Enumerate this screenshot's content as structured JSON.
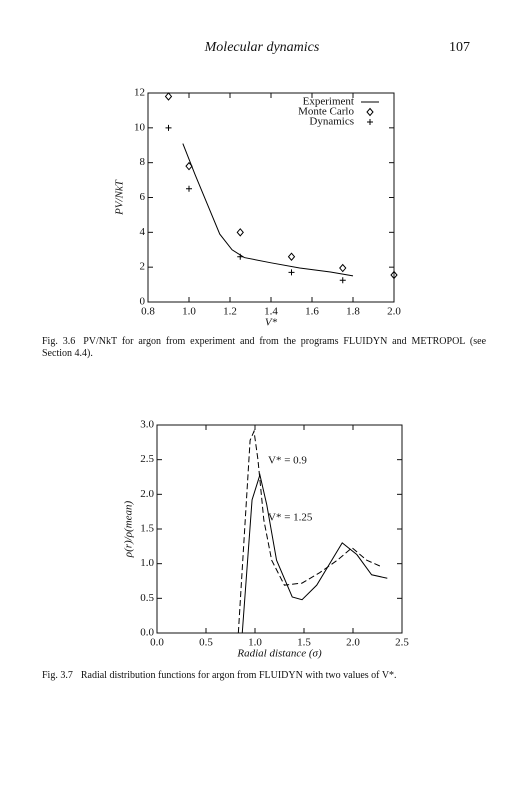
{
  "page_header": {
    "title": "Molecular dynamics",
    "page_number": "107"
  },
  "chart_data": [
    {
      "type": "scatter",
      "xlabel": "V*",
      "ylabel": "PV/NkT",
      "xlim": [
        0.8,
        2.0
      ],
      "xticks": [
        0.8,
        {
          "value": 1.0,
          "label": "1.0"
        },
        1.2,
        1.4,
        1.6,
        1.8,
        {
          "value": 2.0,
          "label": "2.0"
        }
      ],
      "ylim": [
        0,
        12
      ],
      "yticks": [
        0,
        2,
        4,
        6,
        8,
        10,
        12
      ],
      "grid": false,
      "legend": "upper right",
      "series": [
        {
          "name": "Experiment",
          "marker": "line",
          "color": "#000000",
          "x": [
            0.97,
            1.03,
            1.09,
            1.15,
            1.21,
            1.27,
            1.4,
            1.54,
            1.69,
            1.8
          ],
          "values": [
            9.1,
            7.3,
            5.6,
            3.9,
            3.0,
            2.55,
            2.25,
            1.95,
            1.72,
            1.5
          ]
        },
        {
          "name": "Monte Carlo",
          "marker": "diamond",
          "color": "#000000",
          "x": [
            0.9,
            1.0,
            1.25,
            1.5,
            1.75,
            2.0
          ],
          "values": [
            11.8,
            7.8,
            4.0,
            2.6,
            1.95,
            1.55
          ]
        },
        {
          "name": "Dynamics",
          "marker": "plus",
          "color": "#000000",
          "x": [
            0.9,
            1.0,
            1.25,
            1.5,
            1.75
          ],
          "values": [
            10.0,
            6.5,
            2.6,
            1.7,
            1.25
          ]
        }
      ],
      "caption": {
        "label": "Fig. 3.6",
        "text": "PV/NkT for argon from experiment and from the programs FLUIDYN and METROPOL (see Section 4.4)."
      }
    },
    {
      "type": "line",
      "xlabel": "Radial distance (σ)",
      "ylabel": "ρ(r)/ρ(mean)",
      "xlim": [
        0,
        2.5
      ],
      "xticks": [
        {
          "value": 0,
          "label": "0.0"
        },
        0.5,
        {
          "value": 1,
          "label": "1.0"
        },
        1.5,
        {
          "value": 2,
          "label": "2.0"
        },
        2.5
      ],
      "ylim": [
        0,
        3
      ],
      "yticks": [
        {
          "value": 0,
          "label": "0.0"
        },
        0.5,
        {
          "value": 1,
          "label": "1.0"
        },
        1.5,
        {
          "value": 2,
          "label": "2.0"
        },
        2.5,
        {
          "value": 3,
          "label": "3.0"
        }
      ],
      "grid": false,
      "series": [
        {
          "name": "V* = 0.9",
          "marker": "line",
          "dash": true,
          "color": "#000000",
          "x": [
            0.83,
            0.95,
            0.99,
            1.03,
            1.09,
            1.17,
            1.3,
            1.48,
            1.66,
            1.84,
            1.99,
            2.14,
            2.3
          ],
          "values": [
            0,
            2.78,
            2.91,
            2.5,
            1.63,
            1.05,
            0.69,
            0.72,
            0.87,
            1.05,
            1.23,
            1.05,
            0.95
          ]
        },
        {
          "name": "V* = 1.25",
          "marker": "line",
          "dash": false,
          "color": "#000000",
          "x": [
            0.87,
            0.97,
            1.05,
            1.12,
            1.22,
            1.38,
            1.48,
            1.63,
            1.89,
            2.04,
            2.19,
            2.35
          ],
          "values": [
            0,
            1.92,
            2.28,
            1.85,
            1.05,
            0.52,
            0.48,
            0.69,
            1.3,
            1.13,
            0.84,
            0.79
          ]
        }
      ],
      "caption": {
        "label": "Fig. 3.7",
        "text": "Radial distribution functions for argon from FLUIDYN with two values of V*."
      }
    }
  ]
}
